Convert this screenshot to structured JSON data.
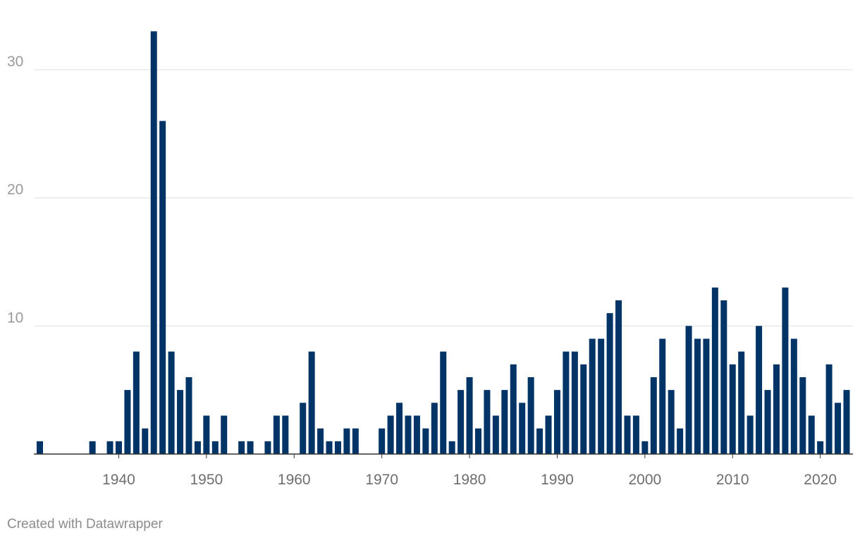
{
  "footer": {
    "credit": "Created with Datawrapper"
  },
  "colors": {
    "bar": "#003366",
    "grid": "#e0e0e0",
    "axis": "#333333",
    "y_tick_text": "#9a9a9a",
    "x_tick_text": "#6e6e6e"
  },
  "chart_data": {
    "type": "bar",
    "title": "",
    "xlabel": "",
    "ylabel": "",
    "xlim": [
      1931,
      2023
    ],
    "ylim": [
      0,
      33
    ],
    "grid": true,
    "y_ticks": [
      10,
      20,
      30
    ],
    "x_ticks": [
      1940,
      1950,
      1960,
      1970,
      1980,
      1990,
      2000,
      2010,
      2020
    ],
    "categories": [
      1931,
      1937,
      1939,
      1940,
      1941,
      1942,
      1943,
      1944,
      1945,
      1946,
      1947,
      1948,
      1949,
      1950,
      1951,
      1952,
      1954,
      1955,
      1957,
      1958,
      1959,
      1961,
      1962,
      1963,
      1964,
      1965,
      1966,
      1967,
      1970,
      1971,
      1972,
      1973,
      1974,
      1975,
      1976,
      1977,
      1978,
      1979,
      1980,
      1981,
      1982,
      1983,
      1984,
      1985,
      1986,
      1987,
      1988,
      1989,
      1990,
      1991,
      1992,
      1993,
      1994,
      1995,
      1996,
      1997,
      1998,
      1999,
      2000,
      2001,
      2002,
      2003,
      2004,
      2005,
      2006,
      2007,
      2008,
      2009,
      2010,
      2011,
      2012,
      2013,
      2014,
      2015,
      2016,
      2017,
      2018,
      2019,
      2020,
      2021,
      2022,
      2023
    ],
    "values": [
      1,
      1,
      1,
      1,
      5,
      8,
      2,
      33,
      26,
      8,
      5,
      6,
      1,
      3,
      1,
      3,
      1,
      1,
      1,
      3,
      3,
      4,
      8,
      2,
      1,
      1,
      2,
      2,
      2,
      3,
      4,
      3,
      3,
      2,
      4,
      8,
      1,
      5,
      6,
      2,
      5,
      3,
      5,
      7,
      4,
      6,
      2,
      3,
      5,
      8,
      8,
      7,
      9,
      9,
      11,
      12,
      3,
      3,
      1,
      6,
      9,
      5,
      2,
      10,
      9,
      9,
      13,
      12,
      7,
      8,
      3,
      10,
      5,
      7,
      13,
      9,
      6,
      3,
      1,
      7,
      4,
      5
    ]
  }
}
